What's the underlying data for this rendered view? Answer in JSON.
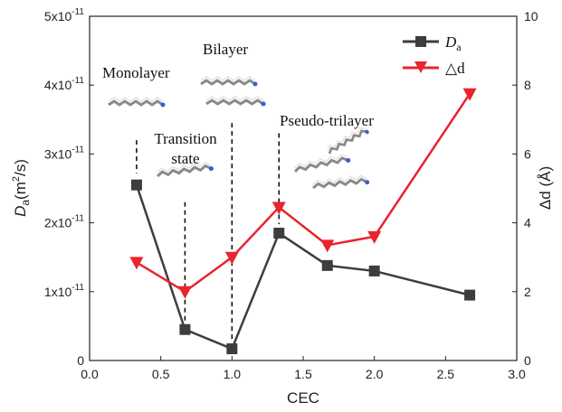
{
  "chart_data": {
    "type": "line",
    "x": [
      0.33,
      0.67,
      1.0,
      1.33,
      1.67,
      2.0,
      2.67
    ],
    "xlabel": "CEC",
    "xlim": [
      0.0,
      3.0
    ],
    "xticks": [
      "0.0",
      "0.5",
      "1.0",
      "1.5",
      "2.0",
      "2.5",
      "3.0"
    ],
    "ylabel_left": {
      "main": "D",
      "sub": "a",
      "rest": "(m",
      "sup": "2",
      "rest2": "/s)"
    },
    "ylim_left": [
      0,
      5e-11
    ],
    "yticks_left": [
      {
        "value": 0,
        "mantissa": "0",
        "exp": ""
      },
      {
        "value": 1e-11,
        "mantissa": "1x10",
        "exp": "-11"
      },
      {
        "value": 2e-11,
        "mantissa": "2x10",
        "exp": "-11"
      },
      {
        "value": 3e-11,
        "mantissa": "3x10",
        "exp": "-11"
      },
      {
        "value": 4e-11,
        "mantissa": "4x10",
        "exp": "-11"
      },
      {
        "value": 5e-11,
        "mantissa": "5x10",
        "exp": "-11"
      }
    ],
    "ylabel_right": "Δd (Å)",
    "ylim_right": [
      0,
      10
    ],
    "yticks_right": [
      "0",
      "2",
      "4",
      "6",
      "8",
      "10"
    ],
    "series": [
      {
        "name_main": "D",
        "name_sub": "a",
        "axis": "left",
        "marker": "square",
        "color": "#3d3d3d",
        "values": [
          2.55e-11,
          4.5e-12,
          1.7e-12,
          1.85e-11,
          1.38e-11,
          1.3e-11,
          9.5e-12
        ]
      },
      {
        "name": "△d",
        "axis": "right",
        "marker": "triangle-down",
        "color": "#e8242c",
        "values": [
          2.85,
          2.0,
          3.0,
          4.45,
          3.35,
          3.6,
          7.75
        ]
      }
    ],
    "annotations": [
      {
        "text": "Monolayer",
        "x": 0.33,
        "y_line_top": 3.2e-11,
        "y_line_bottom": 2.72e-11
      },
      {
        "text_lines": [
          "Transition",
          "state"
        ],
        "x": 0.67,
        "y_line_top": 2.3e-11,
        "y_line_bottom": 5.5e-12
      },
      {
        "text": "Bilayer",
        "x": 1.0,
        "y_line_top": 3.45e-11,
        "y_line_bottom": 3e-12
      },
      {
        "text": "Pseudo-trilayer",
        "x": 1.33,
        "y_line_top": 3.3e-11,
        "y_line_bottom": 1.98e-11
      }
    ],
    "grid": false,
    "legend": "top-right"
  }
}
